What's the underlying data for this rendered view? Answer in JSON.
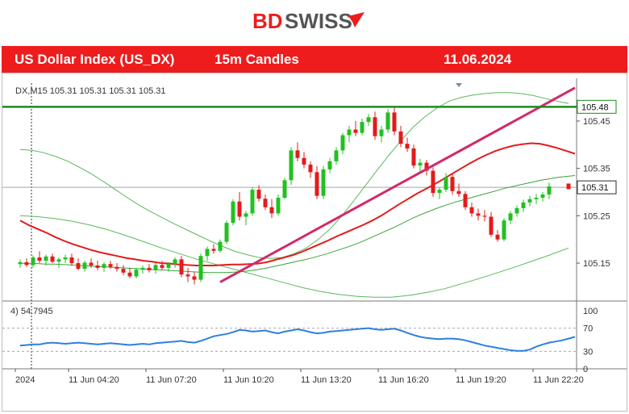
{
  "brand": {
    "name": "BDSWISS",
    "prefix": "BD",
    "suffix": "SWISS",
    "accent": "#ee1c1c"
  },
  "banner": {
    "instrument": "US Dollar Index (US_DX)",
    "timeframe": "15m Candles",
    "date": "11.06.2024"
  },
  "chart_data": {
    "type": "candlestick",
    "info_line": "DX,M15  105.31 105.31 105.31 105.31",
    "price_axis": {
      "range": [
        105.07,
        105.53
      ],
      "ticks": [
        "105.45",
        "105.35",
        "105.25",
        "105.15"
      ],
      "tick_values": [
        105.45,
        105.35,
        105.25,
        105.15
      ]
    },
    "price_tags": [
      {
        "label": "105.48",
        "value": 105.48,
        "color": "#1e8a1e"
      },
      {
        "label": "105.31",
        "value": 105.31,
        "color": "#2b2b2b"
      }
    ],
    "x_labels": [
      "2024",
      "11 Jun 04:20",
      "11 Jun 07:20",
      "11 Jun 10:20",
      "11 Jun 13:20",
      "11 Jun 16:20",
      "11 Jun 19:20",
      "11 Jun 22:20"
    ],
    "x_label_index": [
      1,
      9,
      21,
      33,
      45,
      57,
      69,
      81
    ],
    "candles": [
      [
        105.148,
        105.158,
        105.14,
        105.152
      ],
      [
        105.152,
        105.16,
        105.142,
        105.146
      ],
      [
        105.146,
        105.166,
        105.14,
        105.162
      ],
      [
        105.162,
        105.175,
        105.15,
        105.155
      ],
      [
        105.155,
        105.168,
        105.145,
        105.164
      ],
      [
        105.164,
        105.17,
        105.15,
        105.153
      ],
      [
        105.153,
        105.162,
        105.14,
        105.158
      ],
      [
        105.158,
        105.168,
        105.15,
        105.162
      ],
      [
        105.162,
        105.17,
        105.145,
        105.15
      ],
      [
        105.15,
        105.16,
        105.135,
        105.138
      ],
      [
        105.138,
        105.155,
        105.132,
        105.151
      ],
      [
        105.151,
        105.16,
        105.14,
        105.145
      ],
      [
        105.145,
        105.155,
        105.135,
        105.14
      ],
      [
        105.14,
        105.152,
        105.132,
        105.148
      ],
      [
        105.148,
        105.155,
        105.138,
        105.142
      ],
      [
        105.142,
        105.15,
        105.132,
        105.138
      ],
      [
        105.138,
        105.146,
        105.125,
        105.13
      ],
      [
        105.13,
        105.14,
        105.118,
        105.122
      ],
      [
        105.122,
        105.14,
        105.118,
        105.136
      ],
      [
        105.136,
        105.145,
        105.128,
        105.14
      ],
      [
        105.14,
        105.148,
        105.13,
        105.135
      ],
      [
        105.135,
        105.15,
        105.128,
        105.146
      ],
      [
        105.146,
        105.155,
        105.135,
        105.14
      ],
      [
        105.14,
        105.152,
        105.132,
        105.148
      ],
      [
        105.148,
        105.162,
        105.14,
        105.158
      ],
      [
        105.158,
        105.165,
        105.12,
        105.126
      ],
      [
        105.126,
        105.14,
        105.11,
        105.122
      ],
      [
        105.122,
        105.132,
        105.105,
        105.115
      ],
      [
        105.115,
        105.17,
        105.11,
        105.165
      ],
      [
        105.165,
        105.185,
        105.155,
        105.18
      ],
      [
        105.18,
        105.19,
        105.17,
        105.176
      ],
      [
        105.176,
        105.2,
        105.172,
        105.195
      ],
      [
        105.195,
        105.24,
        105.19,
        105.235
      ],
      [
        105.235,
        105.285,
        105.23,
        105.28
      ],
      [
        105.28,
        105.3,
        105.24,
        105.248
      ],
      [
        105.248,
        105.26,
        105.23,
        105.255
      ],
      [
        105.255,
        105.31,
        105.25,
        105.305
      ],
      [
        105.305,
        105.315,
        105.28,
        105.286
      ],
      [
        105.286,
        105.295,
        105.262,
        105.268
      ],
      [
        105.268,
        105.285,
        105.245,
        105.255
      ],
      [
        105.255,
        105.295,
        105.25,
        105.288
      ],
      [
        105.288,
        105.33,
        105.285,
        105.325
      ],
      [
        105.325,
        105.395,
        105.315,
        105.388
      ],
      [
        105.388,
        105.405,
        105.365,
        105.372
      ],
      [
        105.372,
        105.385,
        105.35,
        105.358
      ],
      [
        105.358,
        105.365,
        105.33,
        105.342
      ],
      [
        105.342,
        105.355,
        105.285,
        105.292
      ],
      [
        105.292,
        105.355,
        105.285,
        105.348
      ],
      [
        105.348,
        105.372,
        105.34,
        105.365
      ],
      [
        105.365,
        105.395,
        105.358,
        105.388
      ],
      [
        105.388,
        105.425,
        105.38,
        105.42
      ],
      [
        105.42,
        105.44,
        105.405,
        105.432
      ],
      [
        105.432,
        105.45,
        105.418,
        105.425
      ],
      [
        105.425,
        105.455,
        105.42,
        105.448
      ],
      [
        105.448,
        105.465,
        105.44,
        105.458
      ],
      [
        105.458,
        105.47,
        105.41,
        105.418
      ],
      [
        105.418,
        105.44,
        105.405,
        105.432
      ],
      [
        105.432,
        105.475,
        105.425,
        105.468
      ],
      [
        105.468,
        105.48,
        105.42,
        105.428
      ],
      [
        105.428,
        105.44,
        105.395,
        105.402
      ],
      [
        105.402,
        105.415,
        105.385,
        105.392
      ],
      [
        105.392,
        105.4,
        105.35,
        105.356
      ],
      [
        105.356,
        105.37,
        105.34,
        105.362
      ],
      [
        105.362,
        105.368,
        105.335,
        105.345
      ],
      [
        105.345,
        105.352,
        105.29,
        105.298
      ],
      [
        105.298,
        105.31,
        105.285,
        105.305
      ],
      [
        105.305,
        105.34,
        105.3,
        105.332
      ],
      [
        105.332,
        105.34,
        105.295,
        105.302
      ],
      [
        105.302,
        105.318,
        105.29,
        105.296
      ],
      [
        105.296,
        105.302,
        105.262,
        105.268
      ],
      [
        105.268,
        105.278,
        105.248,
        105.255
      ],
      [
        105.255,
        105.265,
        105.24,
        105.25
      ],
      [
        105.25,
        105.262,
        105.238,
        105.248
      ],
      [
        105.248,
        105.258,
        105.205,
        105.21
      ],
      [
        105.21,
        105.22,
        105.195,
        105.2
      ],
      [
        105.2,
        105.245,
        105.196,
        105.24
      ],
      [
        105.24,
        105.26,
        105.232,
        105.255
      ],
      [
        105.255,
        105.272,
        105.248,
        105.266
      ],
      [
        105.266,
        105.284,
        105.258,
        105.278
      ],
      [
        105.278,
        105.292,
        105.27,
        105.285
      ],
      [
        105.285,
        105.296,
        105.275,
        105.288
      ],
      [
        105.288,
        105.3,
        105.28,
        105.295
      ],
      [
        105.295,
        105.32,
        105.285,
        105.312
      ]
    ],
    "moving_averages": [
      {
        "name": "MA red",
        "color": "#e31b1b",
        "values": [
          105.24,
          105.23,
          105.222,
          105.214,
          105.205,
          105.197,
          105.19,
          105.184,
          105.178,
          105.173,
          105.169,
          105.165,
          105.161,
          105.158,
          105.155,
          105.153,
          105.15,
          105.149,
          105.147,
          105.146,
          105.145,
          105.145,
          105.145,
          105.146,
          105.147,
          105.147,
          105.148,
          105.149,
          105.152,
          105.157,
          105.162,
          105.167,
          105.174,
          105.182,
          105.19,
          105.198,
          105.207,
          105.215,
          105.223,
          105.231,
          105.24,
          105.25,
          105.262,
          105.274,
          105.285,
          105.296,
          105.306,
          105.316,
          105.327,
          105.338,
          105.349,
          105.36,
          105.37,
          105.379,
          105.387,
          105.393,
          105.398,
          105.401,
          105.403,
          105.402,
          105.398,
          105.393,
          105.387,
          105.381
        ]
      },
      {
        "name": "MA green",
        "color": "#3aa33a",
        "values": [
          105.15,
          105.149,
          105.149,
          105.148,
          105.148,
          105.147,
          105.146,
          105.145,
          105.144,
          105.143,
          105.142,
          105.141,
          105.14,
          105.139,
          105.138,
          105.137,
          105.136,
          105.135,
          105.134,
          105.133,
          105.132,
          105.131,
          105.13,
          105.13,
          105.13,
          105.131,
          105.132,
          105.134,
          105.137,
          105.14,
          105.144,
          105.148,
          105.152,
          105.156,
          105.16,
          105.165,
          105.17,
          105.176,
          105.182,
          105.188,
          105.195,
          105.203,
          105.211,
          105.219,
          105.227,
          105.236,
          105.245,
          105.253,
          105.26,
          105.267,
          105.273,
          105.279,
          105.284,
          105.289,
          105.294,
          105.299,
          105.304,
          105.309,
          105.313,
          105.317,
          105.321,
          105.325,
          105.328,
          105.331,
          105.333,
          105.335
        ]
      }
    ],
    "bollinger_upper": [
      105.39,
      105.388,
      105.383,
      105.375,
      105.365,
      105.352,
      105.338,
      105.322,
      105.305,
      105.288,
      105.272,
      105.258,
      105.245,
      105.232,
      105.22,
      105.208,
      105.196,
      105.185,
      105.175,
      105.168,
      105.162,
      105.16,
      105.162,
      105.17,
      105.182,
      105.2,
      105.222,
      105.25,
      105.282,
      105.315,
      105.348,
      105.38,
      105.41,
      105.438,
      105.46,
      105.478,
      105.492,
      105.5,
      105.505,
      105.508,
      105.51,
      105.51,
      105.508,
      105.504,
      105.498,
      105.492,
      105.487
    ],
    "bollinger_lower": [
      105.25,
      105.248,
      105.244,
      105.238,
      105.23,
      105.22,
      105.208,
      105.195,
      105.182,
      105.17,
      105.158,
      105.148,
      105.138,
      105.128,
      105.118,
      105.108,
      105.098,
      105.09,
      105.084,
      105.08,
      105.078,
      105.078,
      105.082,
      105.088,
      105.096,
      105.107,
      105.118,
      105.13,
      105.142,
      105.155,
      105.168,
      105.182
    ],
    "trendline": {
      "color": "#d12a6a",
      "from": [
        31,
        105.11
      ],
      "to": [
        86,
        105.52
      ]
    },
    "resistance": {
      "value": 105.48,
      "color": "#1e8a1e"
    },
    "oscillator": {
      "label": "(14) 54.7945",
      "display_label": "4) 54.7945",
      "range": [
        0,
        100
      ],
      "ticks": [
        "100",
        "70",
        "30",
        "0"
      ],
      "tick_values": [
        100,
        70,
        30,
        0
      ],
      "levels": [
        70,
        30
      ],
      "color": "#2f7fe0",
      "values": [
        40,
        41,
        42,
        42,
        44,
        45,
        44,
        43,
        44,
        45,
        44,
        43,
        42,
        43,
        44,
        43,
        42,
        41,
        42,
        43,
        42,
        44,
        45,
        46,
        47,
        48,
        46,
        45,
        48,
        52,
        56,
        58,
        60,
        63,
        67,
        66,
        64,
        65,
        66,
        63,
        61,
        64,
        66,
        68,
        66,
        63,
        61,
        62,
        64,
        65,
        66,
        67,
        68,
        69,
        70,
        68,
        67,
        68,
        69,
        66,
        62,
        58,
        55,
        53,
        52,
        51,
        52,
        52,
        51,
        49,
        46,
        43,
        40,
        38,
        36,
        34,
        32,
        31,
        31,
        33,
        38,
        42,
        45,
        47,
        49,
        52,
        55
      ]
    },
    "colors": {
      "bull": "#22c022",
      "bear": "#e31b1b",
      "grid": "#cfd8e0",
      "axis": "#555555"
    }
  }
}
